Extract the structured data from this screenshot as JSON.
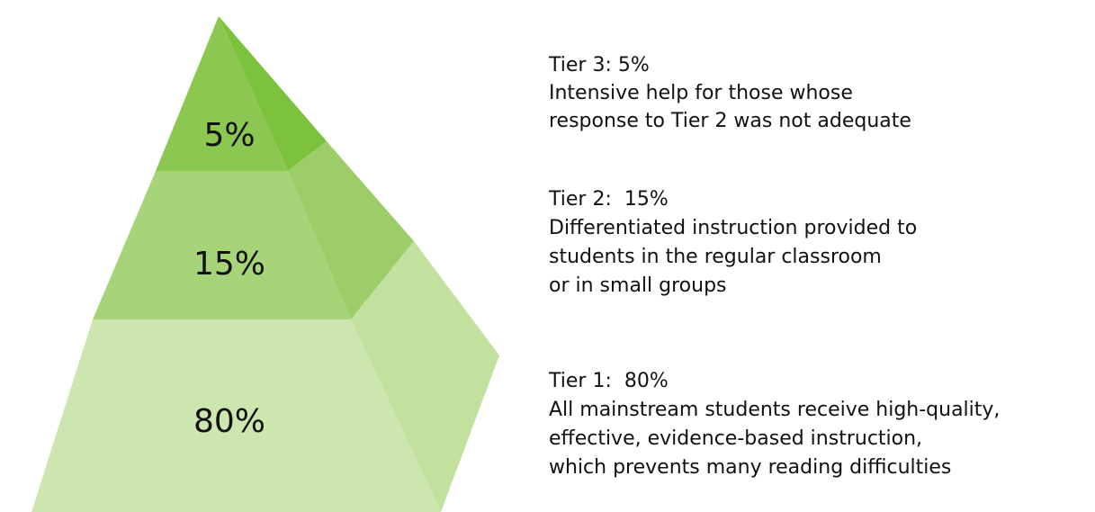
{
  "tiers": [
    {
      "label": "5%",
      "heading": "Tier 3: 5%",
      "description": [
        "Intensive help for those whose",
        "response to Tier 2 was not adequate"
      ]
    },
    {
      "label": "15%",
      "heading": "Tier 2:  15%",
      "description": [
        "Differentiated instruction provided to",
        "students in the regular classroom",
        "or in small groups"
      ]
    },
    {
      "label": "80%",
      "heading": "Tier 1:  80%",
      "description": [
        "All mainstream students receive high-quality,",
        "effective, evidence-based instruction,",
        "which prevents many reading difficulties"
      ]
    }
  ]
}
